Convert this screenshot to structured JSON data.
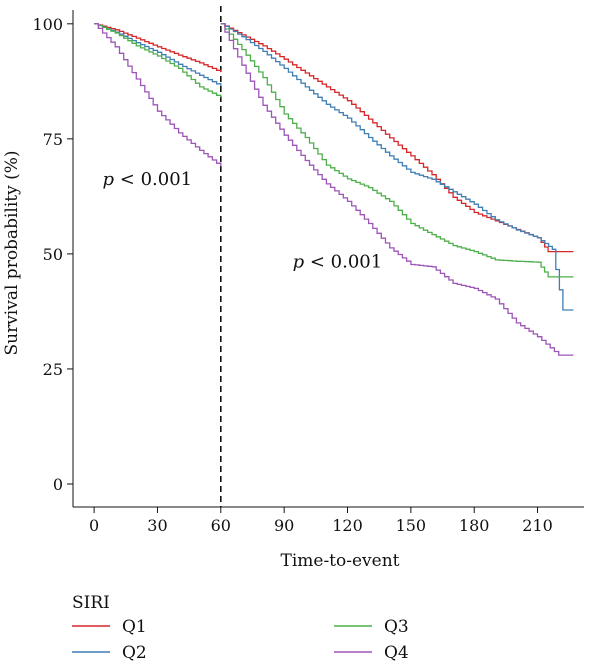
{
  "chart_data": {
    "type": "line",
    "step": true,
    "title": "",
    "xlabel": "Time-to-event",
    "ylabel": "Survival probability (%)",
    "xlim": [
      -10,
      232
    ],
    "ylim": [
      -5,
      103
    ],
    "x_ticks": [
      0,
      30,
      60,
      90,
      120,
      150,
      180,
      210
    ],
    "y_ticks": [
      0,
      25,
      50,
      75,
      100
    ],
    "landmark": 60,
    "grid": false,
    "annotations": [
      {
        "p": "p",
        "rest": " < 0.001",
        "x": 4,
        "y": 65
      },
      {
        "p": "p",
        "rest": " < 0.001",
        "x": 94,
        "y": 47
      }
    ],
    "legend": {
      "title": "SIRI",
      "position": "bottom"
    },
    "series": [
      {
        "name": "Q1",
        "color": "#d62728",
        "segments": [
          {
            "x": [
              0,
              10,
              20,
              30,
              40,
              50,
              60
            ],
            "y": [
              100,
              98.7,
              96.9,
              95.0,
              93.2,
              91.5,
              89.5
            ]
          },
          {
            "x": [
              60,
              70,
              80,
              90,
              100,
              110,
              120,
              130,
              140,
              150,
              160,
              170,
              180,
              190,
              200,
              210,
              215,
              227
            ],
            "y": [
              100,
              97.6,
              95.2,
              92.3,
              89.3,
              86.3,
              83.3,
              79.3,
              75.2,
              71.3,
              67.2,
              62.3,
              59.0,
              57.2,
              55.3,
              53.5,
              50.5,
              50.5
            ]
          }
        ]
      },
      {
        "name": "Q2",
        "color": "#3f7fb5",
        "segments": [
          {
            "x": [
              0,
              10,
              20,
              30,
              40,
              50,
              60
            ],
            "y": [
              100,
              98.2,
              95.9,
              93.8,
              91.2,
              88.8,
              86.5
            ]
          },
          {
            "x": [
              60,
              70,
              80,
              90,
              100,
              110,
              120,
              130,
              140,
              150,
              160,
              170,
              180,
              190,
              200,
              210,
              217,
              222,
              227
            ],
            "y": [
              100,
              97.2,
              94.0,
              90.3,
              86.3,
              82.5,
              79.5,
              75.3,
              71.3,
              67.7,
              66.2,
              63.5,
              60.8,
              57.4,
              55.2,
              53.5,
              51.0,
              37.8,
              37.8
            ]
          }
        ]
      },
      {
        "name": "Q3",
        "color": "#4daf4a",
        "segments": [
          {
            "x": [
              0,
              10,
              20,
              30,
              40,
              50,
              60
            ],
            "y": [
              100,
              98.0,
              95.2,
              93.0,
              90.3,
              86.3,
              84.0
            ]
          },
          {
            "x": [
              60,
              70,
              80,
              90,
              100,
              110,
              120,
              130,
              140,
              150,
              160,
              170,
              180,
              190,
              200,
              210,
              215,
              227
            ],
            "y": [
              100,
              94.4,
              88.3,
              80.4,
              75.3,
              69.3,
              66.3,
              64.4,
              61.4,
              56.6,
              54.2,
              51.8,
              50.5,
              48.7,
              48.4,
              48.2,
              45.0,
              45.0
            ]
          }
        ]
      },
      {
        "name": "Q4",
        "color": "#9d55b8",
        "segments": [
          {
            "x": [
              0,
              10,
              20,
              30,
              40,
              50,
              60
            ],
            "y": [
              100,
              95.0,
              88.0,
              81.0,
              76.3,
              72.5,
              69.0
            ]
          },
          {
            "x": [
              60,
              70,
              80,
              90,
              100,
              110,
              120,
              130,
              140,
              150,
              160,
              170,
              180,
              190,
              200,
              210,
              220,
              227
            ],
            "y": [
              100,
              91.0,
              82.3,
              75.8,
              70.3,
              65.2,
              61.4,
              56.6,
              51.3,
              47.7,
              47.2,
              43.6,
              42.5,
              40.2,
              35.0,
              32.0,
              28.0,
              28.0
            ]
          }
        ]
      }
    ]
  }
}
